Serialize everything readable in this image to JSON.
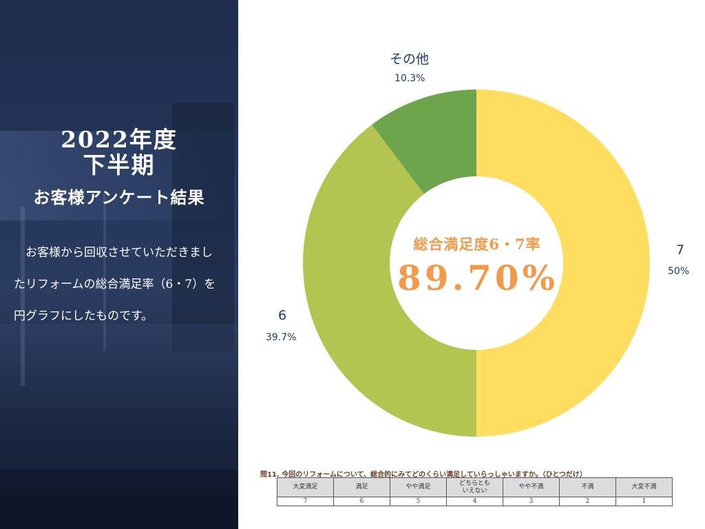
{
  "left_panel": {
    "title_line1": "2022年度",
    "title_line2": "下半期",
    "title_line3": "お客様アンケート結果",
    "description": "お客様から回収させていただきましたリフォームの総合満足率（6・7）を円グラフにしたものです。"
  },
  "chart_data": {
    "type": "pie",
    "donut": true,
    "slices": [
      {
        "name": "7",
        "value": 50,
        "label": "50%",
        "color": "#fedd5f"
      },
      {
        "name": "6",
        "value": 39.7,
        "label": "39.7%",
        "color": "#b3c450"
      },
      {
        "name": "その他",
        "value": 10.3,
        "label": "10.3%",
        "color": "#6ea44b"
      }
    ],
    "center_caption": "総合満足度6・7率",
    "center_value": "89.70%"
  },
  "survey": {
    "question": "問11.  今回のリフォームについて、総合的にみてどのくらい満足していらっしゃいますか。（ひとつだけ）",
    "options": [
      "大変満足",
      "満足",
      "やや満足",
      "どちらとも\nいえない",
      "やや不満",
      "不満",
      "大変不満"
    ],
    "scores": [
      "7",
      "6",
      "5",
      "4",
      "3",
      "2",
      "1"
    ]
  }
}
